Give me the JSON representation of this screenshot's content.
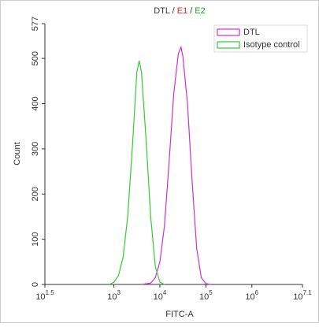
{
  "chart_data": {
    "type": "line",
    "title_parts": [
      {
        "text": "DTL /",
        "color": "#333333"
      },
      {
        "text": "E1",
        "color": "#e02020"
      },
      {
        "text": "/",
        "color": "#333333"
      },
      {
        "text": "E2",
        "color": "#20a020"
      }
    ],
    "x_label": "FITC-A",
    "y_label": "Count",
    "x_log": true,
    "xlim": [
      31.6228,
      12589254
    ],
    "xticks": [
      {
        "value": 31.6228,
        "label": "10",
        "exponent": "1.5"
      },
      {
        "value": 1000,
        "label": "10",
        "exponent": "3"
      },
      {
        "value": 10000,
        "label": "10",
        "exponent": "4"
      },
      {
        "value": 100000,
        "label": "10",
        "exponent": "5"
      },
      {
        "value": 1000000,
        "label": "10",
        "exponent": "6"
      },
      {
        "value": 12589254,
        "label": "10",
        "exponent": "7.1"
      }
    ],
    "ylim": [
      0,
      577
    ],
    "yticks": [
      0,
      100,
      200,
      300,
      400,
      500,
      577
    ],
    "legend": "top-right",
    "series": [
      {
        "name": "DTL",
        "color": "#cc33cc",
        "x": [
          3981,
          6310,
          7943,
          10000,
          12589,
          15849,
          19953,
          25119,
          28840,
          31623,
          39811,
          50119,
          63096,
          79433,
          100000,
          125893
        ],
        "values": [
          0,
          3,
          15,
          50,
          130,
          270,
          420,
          510,
          525,
          505,
          400,
          230,
          80,
          15,
          2,
          0
        ]
      },
      {
        "name": "Isotype control",
        "color": "#33cc33",
        "x": [
          794,
          1000,
          1259,
          1585,
          1995,
          2512,
          3162,
          3548,
          3981,
          5012,
          6310,
          7943,
          10000,
          12589
        ],
        "values": [
          0,
          5,
          20,
          60,
          150,
          300,
          470,
          495,
          470,
          320,
          150,
          40,
          5,
          0
        ]
      }
    ]
  }
}
